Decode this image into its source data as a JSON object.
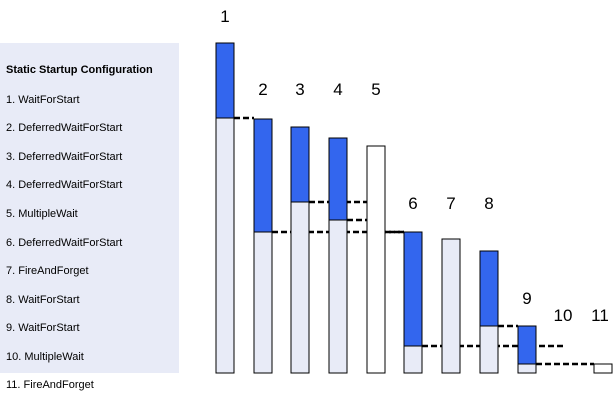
{
  "legend": {
    "title": "Static Startup Configuration",
    "items": [
      "1. WaitForStart",
      "2. DeferredWaitForStart",
      "3. DeferredWaitForStart",
      "4. DeferredWaitForStart",
      "5. MultipleWait",
      "6. DeferredWaitForStart",
      "7. FireAndForget",
      "8. WaitForStart",
      "9. WaitForStart",
      "10. MultipleWait",
      "11. FireAndForget"
    ]
  },
  "bars": [
    {
      "label": "1"
    },
    {
      "label": "2"
    },
    {
      "label": "3"
    },
    {
      "label": "4"
    },
    {
      "label": "5"
    },
    {
      "label": "6"
    },
    {
      "label": "7"
    },
    {
      "label": "8"
    },
    {
      "label": "9"
    },
    {
      "label": "10"
    },
    {
      "label": "11"
    }
  ],
  "colors": {
    "wait_segment": "#3366ee",
    "run_segment": "#e8ebf7",
    "bar_outline": "#000000",
    "panel_background": "#e8ebf7"
  }
}
